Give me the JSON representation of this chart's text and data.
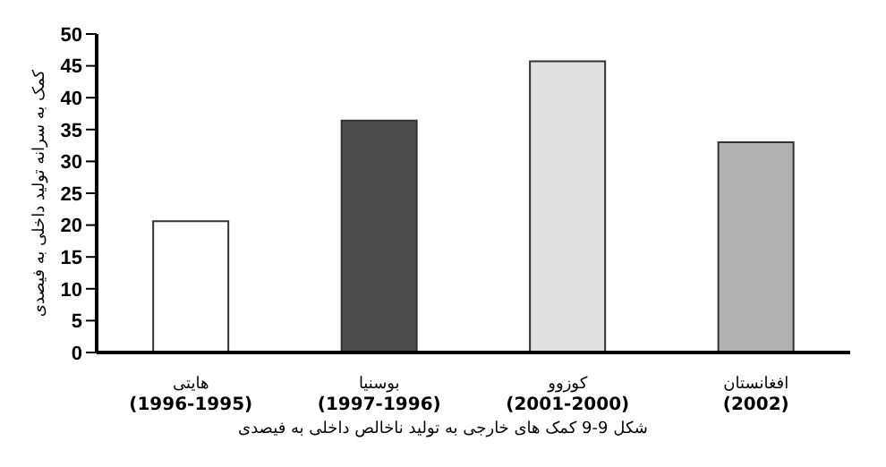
{
  "chart_data": {
    "type": "bar",
    "ylabel": "کمک به سرانه تولید داخلی به فیصدی",
    "annotations": [
      "شکل 9-9 کمک های خارجی به تولید ناخالص داخلی به فیصدی"
    ],
    "categories": [
      "هایتی\n(1996-1995)",
      "بوسنیا\n(1997-1996)",
      "کوزوو\n(2001-2000)",
      "افغانستان\n(2002)"
    ],
    "values": [
      20.6,
      36.4,
      45.7,
      33
    ],
    "colors": [
      "#ffffff",
      "#4d4d4d",
      "#e0e0e0",
      "#b0b0b0"
    ],
    "ylim": [
      0,
      50
    ],
    "yticks": [
      0,
      5,
      10,
      15,
      20,
      25,
      30,
      35,
      40,
      45,
      50
    ],
    "grid": false,
    "legend": false
  }
}
